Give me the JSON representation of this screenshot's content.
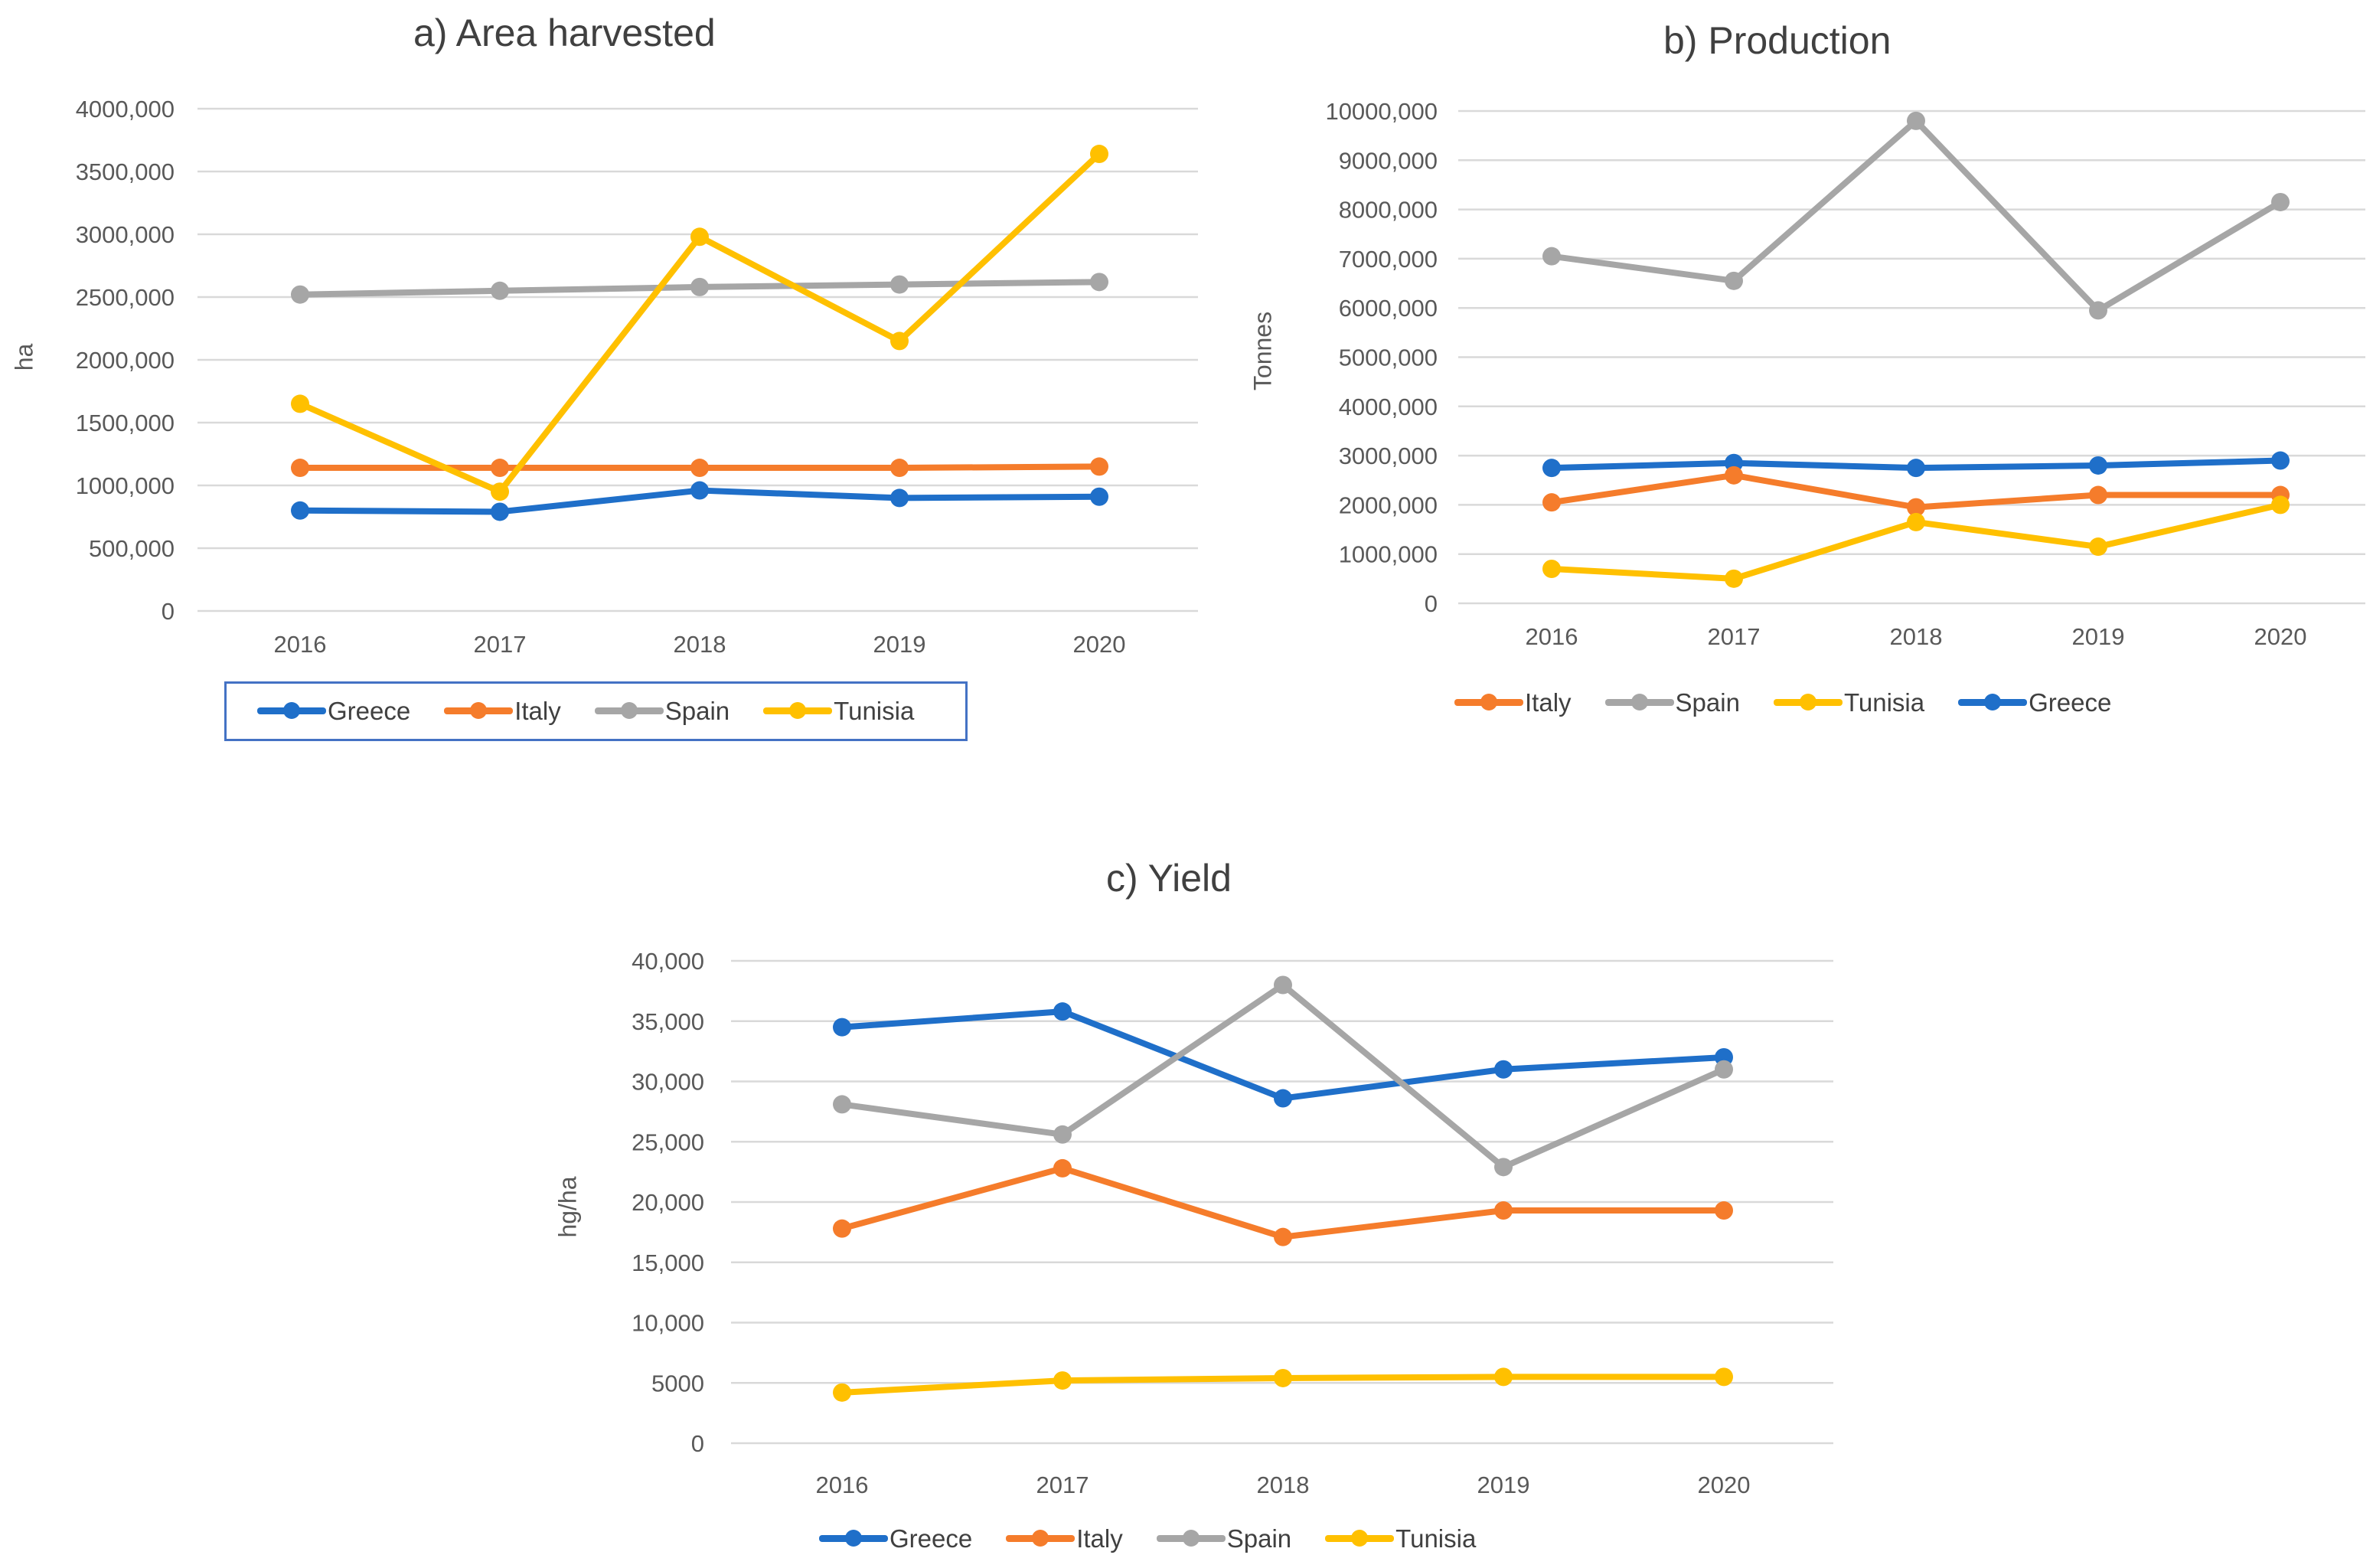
{
  "colors": {
    "Greece": "#1F6FC9",
    "Italy": "#F57C2B",
    "Spain": "#A6A6A6",
    "Tunisia": "#FFC000",
    "grid": "#D9D9D9"
  },
  "chart_data": [
    {
      "id": "a",
      "type": "line",
      "title": "a) Area harvested",
      "xlabel": "",
      "ylabel": "ha",
      "categories": [
        "2016",
        "2017",
        "2018",
        "2019",
        "2020"
      ],
      "ylim": [
        0,
        4000000
      ],
      "ytick_values": [
        0,
        500000,
        1000000,
        1500000,
        2000000,
        2500000,
        3000000,
        3500000,
        4000000
      ],
      "ytick_labels": [
        "0",
        "500,000",
        "1000,000",
        "1500,000",
        "2000,000",
        "2500,000",
        "3000,000",
        "3500,000",
        "4000,000"
      ],
      "grid": true,
      "legend_position": "bottom",
      "legend_order": [
        "Greece",
        "Italy",
        "Spain",
        "Tunisia"
      ],
      "series": [
        {
          "name": "Greece",
          "values": [
            800000,
            790000,
            960000,
            900000,
            910000
          ]
        },
        {
          "name": "Italy",
          "values": [
            1140000,
            1140000,
            1140000,
            1140000,
            1150000
          ]
        },
        {
          "name": "Spain",
          "values": [
            2520000,
            2550000,
            2580000,
            2600000,
            2620000
          ]
        },
        {
          "name": "Tunisia",
          "values": [
            1650000,
            950000,
            2980000,
            2150000,
            3640000
          ]
        }
      ]
    },
    {
      "id": "b",
      "type": "line",
      "title": "b) Production",
      "xlabel": "",
      "ylabel": "Tonnes",
      "categories": [
        "2016",
        "2017",
        "2018",
        "2019",
        "2020"
      ],
      "ylim": [
        0,
        10000000
      ],
      "ytick_values": [
        0,
        1000000,
        2000000,
        3000000,
        4000000,
        5000000,
        6000000,
        7000000,
        8000000,
        9000000,
        10000000
      ],
      "ytick_labels": [
        "0",
        "1000,000",
        "2000,000",
        "3000,000",
        "4000,000",
        "5000,000",
        "6000,000",
        "7000,000",
        "8000,000",
        "9000,000",
        "10000,000"
      ],
      "grid": true,
      "legend_position": "bottom",
      "legend_order": [
        "Italy",
        "Spain",
        "Tunisia",
        "Greece"
      ],
      "series": [
        {
          "name": "Greece",
          "values": [
            2750000,
            2850000,
            2750000,
            2800000,
            2900000
          ]
        },
        {
          "name": "Italy",
          "values": [
            2050000,
            2600000,
            1950000,
            2200000,
            2200000
          ]
        },
        {
          "name": "Spain",
          "values": [
            7050000,
            6550000,
            9800000,
            5950000,
            8150000
          ]
        },
        {
          "name": "Tunisia",
          "values": [
            700000,
            500000,
            1650000,
            1150000,
            2000000
          ]
        }
      ]
    },
    {
      "id": "c",
      "type": "line",
      "title": "c) Yield",
      "xlabel": "",
      "ylabel": "hg/ha",
      "categories": [
        "2016",
        "2017",
        "2018",
        "2019",
        "2020"
      ],
      "ylim": [
        0,
        40000
      ],
      "ytick_values": [
        0,
        5000,
        10000,
        15000,
        20000,
        25000,
        30000,
        35000,
        40000
      ],
      "ytick_labels": [
        "0",
        "5000",
        "10,000",
        "15,000",
        "20,000",
        "25,000",
        "30,000",
        "35,000",
        "40,000"
      ],
      "grid": true,
      "legend_position": "bottom",
      "legend_order": [
        "Greece",
        "Italy",
        "Spain",
        "Tunisia"
      ],
      "series": [
        {
          "name": "Greece",
          "values": [
            34500,
            35800,
            28600,
            31000,
            32000
          ]
        },
        {
          "name": "Italy",
          "values": [
            17800,
            22800,
            17100,
            19300,
            19300
          ]
        },
        {
          "name": "Spain",
          "values": [
            28100,
            25600,
            38000,
            22900,
            31000
          ]
        },
        {
          "name": "Tunisia",
          "values": [
            4200,
            5200,
            5400,
            5500,
            5500
          ]
        }
      ]
    }
  ]
}
